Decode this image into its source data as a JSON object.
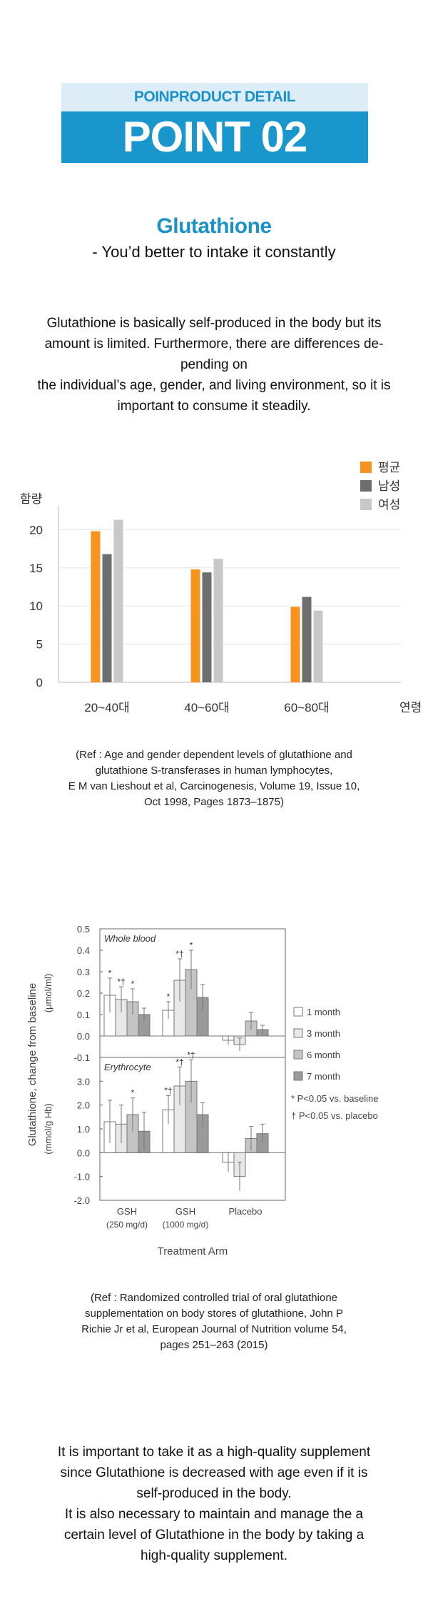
{
  "header": {
    "eyebrow": "POINPRODUCT DETAIL",
    "headline": "POINT 02"
  },
  "intro": {
    "title": "Glutathione",
    "subtitle": "- You’d better to intake it constantly"
  },
  "paragraph1": [
    "Glutathione is basically self-produced in the body but its",
    "amount is limited. Furthermore, there are differences de-",
    "pending on",
    "the individual’s age, gender, and living environment, so it is",
    "important to consume it steadily."
  ],
  "chart_data": [
    {
      "type": "bar",
      "ylabel": "함량",
      "xlabel": "연령",
      "categories": [
        "20~40대",
        "40~60대",
        "60~80대"
      ],
      "ylim": [
        0,
        22
      ],
      "yticks": [
        0,
        5,
        10,
        15,
        20
      ],
      "grid": true,
      "legend": "top-right",
      "series": [
        {
          "name": "평균",
          "color": "#f7931e",
          "values": [
            19.8,
            14.8,
            9.9
          ]
        },
        {
          "name": "남성",
          "color": "#6d6e70",
          "values": [
            16.8,
            14.4,
            11.2
          ]
        },
        {
          "name": "여성",
          "color": "#c8c8c8",
          "values": [
            21.3,
            16.2,
            9.4
          ]
        }
      ]
    },
    {
      "type": "bar",
      "ylabel": "Glutathione, change from baseline",
      "xlabel": "Treatment Arm",
      "categories": [
        {
          "label": "GSH",
          "sub": "(250 mg/d)"
        },
        {
          "label": "GSH",
          "sub": "(1000 mg/d)"
        },
        {
          "label": "Placebo",
          "sub": ""
        }
      ],
      "legend": "right",
      "series": [
        {
          "name": "1 month",
          "color": "#ffffff"
        },
        {
          "name": "3 month",
          "color": "#e8e8e8"
        },
        {
          "name": "6 month",
          "color": "#c4c4c4"
        },
        {
          "name": "7 month",
          "color": "#9a9a9a"
        }
      ],
      "panels": [
        {
          "name": "Whole blood",
          "unit": "(μmol/ml)",
          "ylim": [
            -0.1,
            0.5
          ],
          "yticks": [
            "0.5",
            "0.4",
            "0.3",
            "0.2",
            "0.1",
            "0.0",
            "-0.1"
          ],
          "values": [
            [
              0.19,
              0.17,
              0.16,
              0.1
            ],
            [
              0.12,
              0.26,
              0.31,
              0.18
            ],
            [
              -0.02,
              -0.04,
              0.07,
              0.03
            ]
          ],
          "errors": [
            [
              0.08,
              0.06,
              0.06,
              0.03
            ],
            [
              0.04,
              0.1,
              0.09,
              0.06
            ],
            [
              0.02,
              0.03,
              0.04,
              0.02
            ]
          ],
          "marks": [
            [
              "*",
              "*†",
              "*",
              ""
            ],
            [
              "*",
              "*†",
              "*",
              ""
            ],
            [
              "",
              "",
              "",
              ""
            ]
          ]
        },
        {
          "name": "Erythrocyte",
          "unit": "(mmol/g Hb)",
          "ylim": [
            -2.0,
            4.0
          ],
          "yticks": [
            "",
            "3.0",
            "2.0",
            "1.0",
            "0.0",
            "-1.0",
            "-2.0"
          ],
          "values": [
            [
              1.3,
              1.2,
              1.6,
              0.9
            ],
            [
              1.8,
              2.8,
              3.0,
              1.6
            ],
            [
              -0.4,
              -1.0,
              0.6,
              0.8
            ]
          ],
          "errors": [
            [
              0.9,
              0.8,
              0.7,
              0.8
            ],
            [
              0.6,
              0.8,
              0.9,
              0.5
            ],
            [
              0.4,
              0.6,
              0.5,
              0.4
            ]
          ],
          "marks": [
            [
              "",
              "",
              "*",
              ""
            ],
            [
              "*†",
              "*†",
              "*†",
              ""
            ],
            [
              "",
              "",
              "",
              ""
            ]
          ]
        }
      ],
      "notes": [
        "* P<0.05 vs. baseline",
        "† P<0.05 vs. placebo"
      ]
    }
  ],
  "ref1": [
    "(Ref : Age and gender dependent levels of glutathione and",
    "glutathione S-transferases in human lymphocytes,",
    "E M van Lieshout et al, Carcinogenesis, Volume 19, Issue 10,",
    "Oct 1998, Pages 1873–1875)"
  ],
  "ref2": [
    "(Ref : Randomized controlled trial of oral glutathione",
    "supplementation on body stores of glutathione, John P",
    "Richie Jr et al, European Journal of Nutrition volume 54,",
    "pages 251–263 (2015)"
  ],
  "paragraph2": [
    "It is important to take it as a high-quality supplement",
    "since Glutathione is decreased with age even if it is",
    "self-produced in the body.",
    "It is also necessary to maintain and manage the a",
    "certain level of Glutathione in the body by taking a",
    "high-quality supplement."
  ]
}
